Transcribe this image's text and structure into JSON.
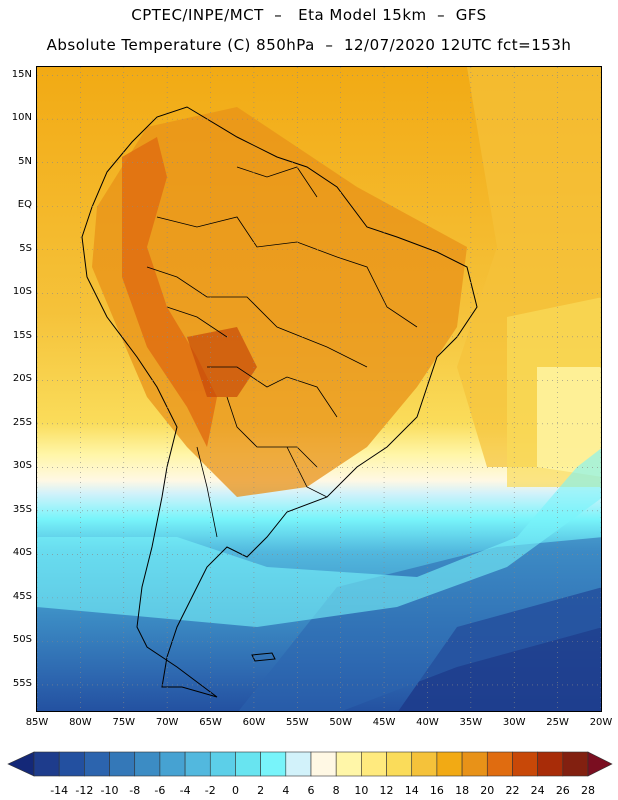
{
  "header": {
    "line1": "CPTEC/INPE/MCT  –   Eta Model 15km  –  GFS",
    "line2": "Absolute Temperature (C) 850hPa  –  12/07/2020 12UTC fct=153h"
  },
  "map": {
    "lat_labels": [
      "15N",
      "10N",
      "5N",
      "EQ",
      "5S",
      "10S",
      "15S",
      "20S",
      "25S",
      "30S",
      "35S",
      "40S",
      "45S",
      "50S",
      "55S"
    ],
    "lat_values": [
      15,
      10,
      5,
      0,
      -5,
      -10,
      -15,
      -20,
      -25,
      -30,
      -35,
      -40,
      -45,
      -50,
      -55
    ],
    "lon_labels": [
      "85W",
      "80W",
      "75W",
      "70W",
      "65W",
      "60W",
      "55W",
      "50W",
      "45W",
      "40W",
      "35W",
      "30W",
      "25W",
      "20W"
    ],
    "lon_values": [
      -85,
      -80,
      -75,
      -70,
      -65,
      -60,
      -55,
      -50,
      -45,
      -40,
      -35,
      -30,
      -25,
      -20
    ],
    "extent": {
      "lon_min": -85,
      "lon_max": -20,
      "lat_min": -58,
      "lat_max": 16
    }
  },
  "colorbar": {
    "labels": [
      "-14",
      "-12",
      "-10",
      "-8",
      "-6",
      "-4",
      "-2",
      "0",
      "2",
      "4",
      "6",
      "8",
      "10",
      "12",
      "14",
      "16",
      "18",
      "20",
      "22",
      "24",
      "26",
      "28"
    ],
    "colors": [
      "#1e3c8c",
      "#2350a0",
      "#2c64ae",
      "#3478b8",
      "#3c8cc4",
      "#46a2d2",
      "#52b8de",
      "#5ccfe8",
      "#68e4f0",
      "#78f4fa",
      "#d2f2fa",
      "#fff8e4",
      "#fff6a8",
      "#ffea7e",
      "#fadc5a",
      "#f5c23a",
      "#f2aa14",
      "#e89218",
      "#e06c10",
      "#c84808",
      "#a82c08",
      "#822010"
    ],
    "over_color": "#7a0e20",
    "under_color": "#142878"
  }
}
